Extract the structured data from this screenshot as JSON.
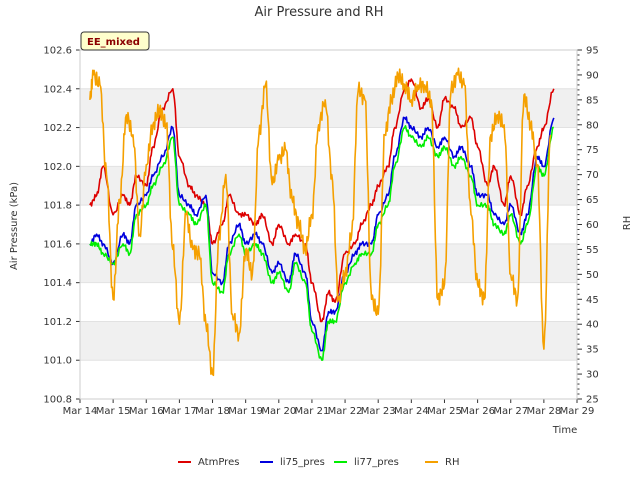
{
  "chart_data": {
    "type": "line",
    "title": "Air Pressure and RH",
    "xlabel": "Time",
    "ylabel": "Air Pressure (kPa)",
    "y2label": "RH",
    "badge": "EE_mixed",
    "x_ticks": [
      "Mar 14",
      "Mar 15",
      "Mar 16",
      "Mar 17",
      "Mar 18",
      "Mar 19",
      "Mar 20",
      "Mar 21",
      "Mar 22",
      "Mar 23",
      "Mar 24",
      "Mar 25",
      "Mar 26",
      "Mar 27",
      "Mar 28",
      "Mar 29"
    ],
    "xlim": [
      14,
      29
    ],
    "ylim": [
      100.8,
      102.6
    ],
    "y_ticks": [
      "100.8",
      "101.0",
      "101.2",
      "101.4",
      "101.6",
      "101.8",
      "102.0",
      "102.2",
      "102.4",
      "102.6"
    ],
    "y2lim": [
      25,
      95
    ],
    "y2_ticks": [
      "25",
      "30",
      "35",
      "40",
      "45",
      "50",
      "55",
      "60",
      "65",
      "70",
      "75",
      "80",
      "85",
      "90",
      "95"
    ],
    "grid": "horizontal bands",
    "legend_position": "bottom",
    "series": [
      {
        "name": "AtmPres",
        "color": "#dd0000",
        "axis": "left",
        "x": [
          14.3,
          14.5,
          14.7,
          15.0,
          15.3,
          15.5,
          15.7,
          16.0,
          16.2,
          16.5,
          16.8,
          17.0,
          17.3,
          17.5,
          17.8,
          18.0,
          18.3,
          18.5,
          18.8,
          19.0,
          19.3,
          19.5,
          19.8,
          20.0,
          20.3,
          20.5,
          20.8,
          21.0,
          21.3,
          21.5,
          21.7,
          22.0,
          22.3,
          22.5,
          22.8,
          23.0,
          23.3,
          23.5,
          23.8,
          24.0,
          24.3,
          24.5,
          24.8,
          25.0,
          25.3,
          25.5,
          25.8,
          26.0,
          26.3,
          26.5,
          26.8,
          27.0,
          27.3,
          27.5,
          27.8,
          28.0,
          28.3
        ],
        "y": [
          101.8,
          101.85,
          102.0,
          101.75,
          101.85,
          101.8,
          101.95,
          101.9,
          102.1,
          102.3,
          102.4,
          102.05,
          101.9,
          101.85,
          101.8,
          101.6,
          101.7,
          101.85,
          101.75,
          101.75,
          101.7,
          101.75,
          101.6,
          101.7,
          101.6,
          101.65,
          101.6,
          101.4,
          101.2,
          101.35,
          101.3,
          101.55,
          101.6,
          101.7,
          101.8,
          101.9,
          102.0,
          102.2,
          102.4,
          102.45,
          102.3,
          102.35,
          102.2,
          102.35,
          102.3,
          102.2,
          102.25,
          102.1,
          101.9,
          102.0,
          101.8,
          101.95,
          101.75,
          101.9,
          102.1,
          102.2,
          102.4
        ]
      },
      {
        "name": "li75_pres",
        "color": "#0000dd",
        "axis": "left",
        "x": [
          14.3,
          14.5,
          14.7,
          15.0,
          15.3,
          15.5,
          15.7,
          16.0,
          16.2,
          16.5,
          16.8,
          17.0,
          17.3,
          17.5,
          17.8,
          18.0,
          18.3,
          18.5,
          18.8,
          19.0,
          19.3,
          19.5,
          19.8,
          20.0,
          20.3,
          20.5,
          20.8,
          21.0,
          21.3,
          21.5,
          21.7,
          22.0,
          22.3,
          22.5,
          22.8,
          23.0,
          23.3,
          23.5,
          23.8,
          24.0,
          24.3,
          24.5,
          24.8,
          25.0,
          25.3,
          25.5,
          25.8,
          26.0,
          26.3,
          26.5,
          26.8,
          27.0,
          27.3,
          27.5,
          27.8,
          28.0,
          28.3
        ],
        "y": [
          101.6,
          101.65,
          101.6,
          101.5,
          101.65,
          101.6,
          101.8,
          101.85,
          101.95,
          102.05,
          102.2,
          101.85,
          101.8,
          101.75,
          101.85,
          101.45,
          101.4,
          101.6,
          101.7,
          101.6,
          101.65,
          101.6,
          101.45,
          101.5,
          101.4,
          101.55,
          101.45,
          101.2,
          101.05,
          101.25,
          101.25,
          101.45,
          101.55,
          101.6,
          101.6,
          101.75,
          101.85,
          102.05,
          102.25,
          102.2,
          102.15,
          102.2,
          102.1,
          102.15,
          102.05,
          102.1,
          102.0,
          101.85,
          101.85,
          101.75,
          101.7,
          101.8,
          101.65,
          101.75,
          102.05,
          102.0,
          102.25
        ]
      },
      {
        "name": "li77_pres",
        "color": "#00ee00",
        "axis": "left",
        "x": [
          14.3,
          14.5,
          14.7,
          15.0,
          15.3,
          15.5,
          15.7,
          16.0,
          16.2,
          16.5,
          16.8,
          17.0,
          17.3,
          17.5,
          17.8,
          18.0,
          18.3,
          18.5,
          18.8,
          19.0,
          19.3,
          19.5,
          19.8,
          20.0,
          20.3,
          20.5,
          20.8,
          21.0,
          21.3,
          21.5,
          21.7,
          22.0,
          22.3,
          22.5,
          22.8,
          23.0,
          23.3,
          23.5,
          23.8,
          24.0,
          24.3,
          24.5,
          24.8,
          25.0,
          25.3,
          25.5,
          25.8,
          26.0,
          26.3,
          26.5,
          26.8,
          27.0,
          27.3,
          27.5,
          27.8,
          28.0,
          28.3
        ],
        "y": [
          101.6,
          101.6,
          101.55,
          101.5,
          101.6,
          101.55,
          101.75,
          101.8,
          101.9,
          102.0,
          102.15,
          101.8,
          101.75,
          101.7,
          101.8,
          101.4,
          101.35,
          101.55,
          101.65,
          101.55,
          101.6,
          101.55,
          101.4,
          101.45,
          101.35,
          101.5,
          101.4,
          101.15,
          101.0,
          101.2,
          101.2,
          101.4,
          101.5,
          101.55,
          101.55,
          101.7,
          101.8,
          102.0,
          102.2,
          102.15,
          102.1,
          102.15,
          102.05,
          102.1,
          102.0,
          102.05,
          101.95,
          101.8,
          101.8,
          101.7,
          101.65,
          101.75,
          101.6,
          101.7,
          102.0,
          101.95,
          102.2
        ]
      },
      {
        "name": "RH",
        "color": "#f5a000",
        "axis": "right",
        "x": [
          14.3,
          14.4,
          14.6,
          14.8,
          15.0,
          15.2,
          15.4,
          15.6,
          15.8,
          16.0,
          16.2,
          16.4,
          16.6,
          16.8,
          17.0,
          17.2,
          17.4,
          17.6,
          17.8,
          18.0,
          18.2,
          18.4,
          18.6,
          18.8,
          19.0,
          19.2,
          19.4,
          19.6,
          19.8,
          20.0,
          20.2,
          20.4,
          20.6,
          20.8,
          21.0,
          21.2,
          21.4,
          21.6,
          21.8,
          22.0,
          22.2,
          22.4,
          22.6,
          22.8,
          23.0,
          23.2,
          23.4,
          23.6,
          23.8,
          24.0,
          24.2,
          24.4,
          24.6,
          24.8,
          25.0,
          25.2,
          25.4,
          25.6,
          25.8,
          26.0,
          26.2,
          26.4,
          26.6,
          26.8,
          27.0,
          27.2,
          27.4,
          27.6,
          27.8,
          28.0,
          28.2
        ],
        "y": [
          85,
          90,
          88,
          70,
          45,
          65,
          82,
          78,
          58,
          72,
          80,
          83,
          80,
          55,
          40,
          62,
          55,
          54,
          40,
          30,
          58,
          70,
          42,
          38,
          55,
          50,
          78,
          88,
          68,
          73,
          75,
          65,
          60,
          55,
          62,
          80,
          85,
          70,
          45,
          50,
          58,
          87,
          85,
          45,
          42,
          78,
          85,
          90,
          88,
          85,
          88,
          88,
          85,
          45,
          48,
          87,
          90,
          88,
          62,
          48,
          45,
          78,
          82,
          80,
          50,
          45,
          86,
          80,
          72,
          35,
          78
        ]
      }
    ]
  }
}
